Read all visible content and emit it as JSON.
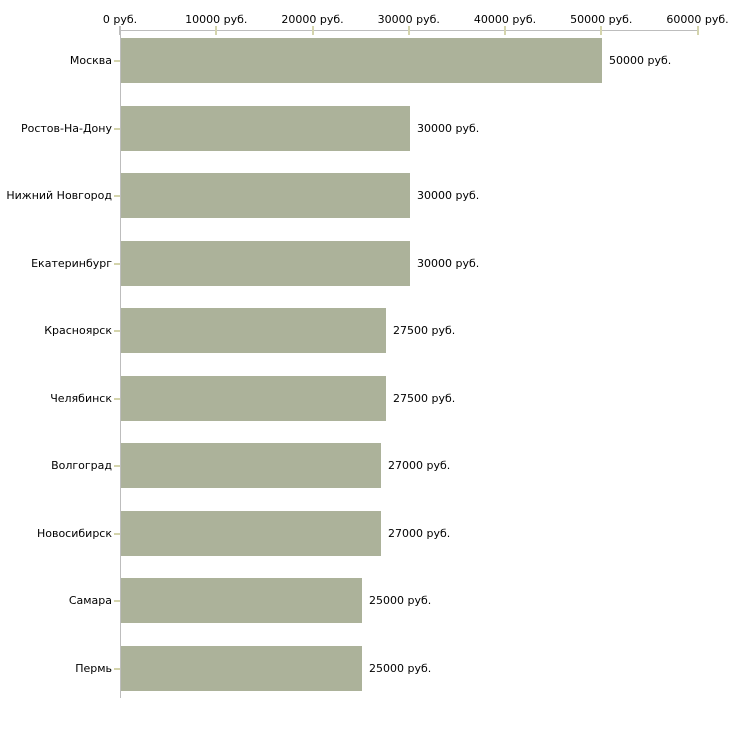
{
  "chart_data": {
    "type": "bar",
    "orientation": "horizontal",
    "title": "",
    "categories": [
      "Москва",
      "Ростов-На-Дону",
      "Нижний Новгород",
      "Екатеринбург",
      "Красноярск",
      "Челябинск",
      "Волгоград",
      "Новосибирск",
      "Самара",
      "Пермь"
    ],
    "values": [
      50000,
      30000,
      30000,
      30000,
      27500,
      27500,
      27000,
      27000,
      25000,
      25000
    ],
    "value_labels": [
      "50000 руб.",
      "30000 руб.",
      "30000 руб.",
      "30000 руб.",
      "27500 руб.",
      "27500 руб.",
      "27000 руб.",
      "27000 руб.",
      "25000 руб.",
      "25000 руб."
    ],
    "unit": "руб.",
    "x_axis": {
      "position": "top",
      "xlim": [
        0,
        60000
      ],
      "ticks": [
        0,
        10000,
        20000,
        30000,
        40000,
        50000,
        60000
      ],
      "tick_labels": [
        "0 руб.",
        "10000 руб.",
        "20000 руб.",
        "30000 руб.",
        "40000 руб.",
        "50000 руб.",
        "60000 руб."
      ]
    },
    "grid": false,
    "legend": false,
    "colors": {
      "bar": "#acb29a",
      "axis_line": "#bdbdbd",
      "tick_mark": "#d4d4ac",
      "text": "#000000",
      "background": "#ffffff"
    }
  }
}
